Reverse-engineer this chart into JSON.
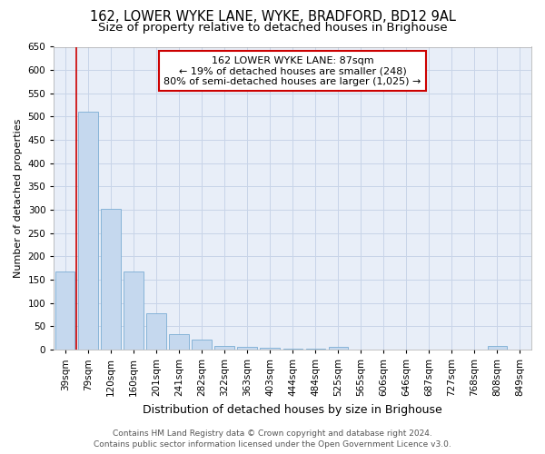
{
  "title1": "162, LOWER WYKE LANE, WYKE, BRADFORD, BD12 9AL",
  "title2": "Size of property relative to detached houses in Brighouse",
  "xlabel": "Distribution of detached houses by size in Brighouse",
  "ylabel": "Number of detached properties",
  "categories": [
    "39sqm",
    "79sqm",
    "120sqm",
    "160sqm",
    "201sqm",
    "241sqm",
    "282sqm",
    "322sqm",
    "363sqm",
    "403sqm",
    "444sqm",
    "484sqm",
    "525sqm",
    "565sqm",
    "606sqm",
    "646sqm",
    "687sqm",
    "727sqm",
    "768sqm",
    "808sqm",
    "849sqm"
  ],
  "values": [
    168,
    510,
    302,
    168,
    78,
    33,
    22,
    8,
    5,
    3,
    2,
    2,
    5,
    0,
    0,
    0,
    0,
    0,
    0,
    8,
    0
  ],
  "bar_color": "#c5d8ee",
  "bar_edge_color": "#7aadd4",
  "vline_pos": 0.5,
  "vline_color": "#cc0000",
  "annotation_line1": "162 LOWER WYKE LANE: 87sqm",
  "annotation_line2": "← 19% of detached houses are smaller (248)",
  "annotation_line3": "80% of semi-detached houses are larger (1,025) →",
  "annotation_box_facecolor": "#ffffff",
  "annotation_box_edgecolor": "#cc0000",
  "ylim": [
    0,
    650
  ],
  "yticks": [
    0,
    50,
    100,
    150,
    200,
    250,
    300,
    350,
    400,
    450,
    500,
    550,
    600,
    650
  ],
  "grid_color": "#c8d4e8",
  "background_color": "#e8eef8",
  "footer1": "Contains HM Land Registry data © Crown copyright and database right 2024.",
  "footer2": "Contains public sector information licensed under the Open Government Licence v3.0.",
  "title1_fontsize": 10.5,
  "title2_fontsize": 9.5,
  "xlabel_fontsize": 9,
  "ylabel_fontsize": 8,
  "tick_fontsize": 7.5,
  "annotation_fontsize": 8,
  "footer_fontsize": 6.5
}
